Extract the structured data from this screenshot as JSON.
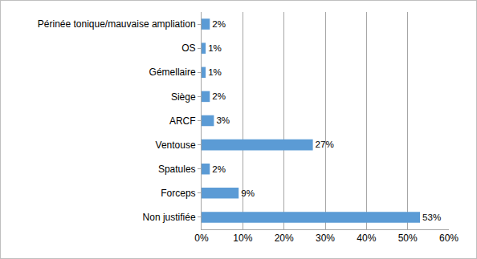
{
  "chart_data": {
    "type": "bar",
    "orientation": "horizontal",
    "categories": [
      "Non justifiée",
      "Forceps",
      "Spatules",
      "Ventouse",
      "ARCF",
      "Siège",
      "Gémellaire",
      "OS",
      "Périnée tonique/mauvaise ampliation"
    ],
    "values": [
      53,
      9,
      2,
      27,
      3,
      2,
      1,
      1,
      2
    ],
    "value_labels": [
      "53%",
      "9%",
      "2%",
      "27%",
      "3%",
      "2%",
      "1%",
      "1%",
      "2%"
    ],
    "data_labels": true,
    "color": "#5b9bd5",
    "xlim": [
      0,
      60
    ],
    "xticks": [
      {
        "value": 0,
        "label": "0%"
      },
      {
        "value": 10,
        "label": "10%"
      },
      {
        "value": 20,
        "label": "20%"
      },
      {
        "value": 30,
        "label": "30%"
      },
      {
        "value": 40,
        "label": "40%"
      },
      {
        "value": 50,
        "label": "50%"
      },
      {
        "value": 60,
        "label": "60%"
      }
    ],
    "grid": true
  }
}
